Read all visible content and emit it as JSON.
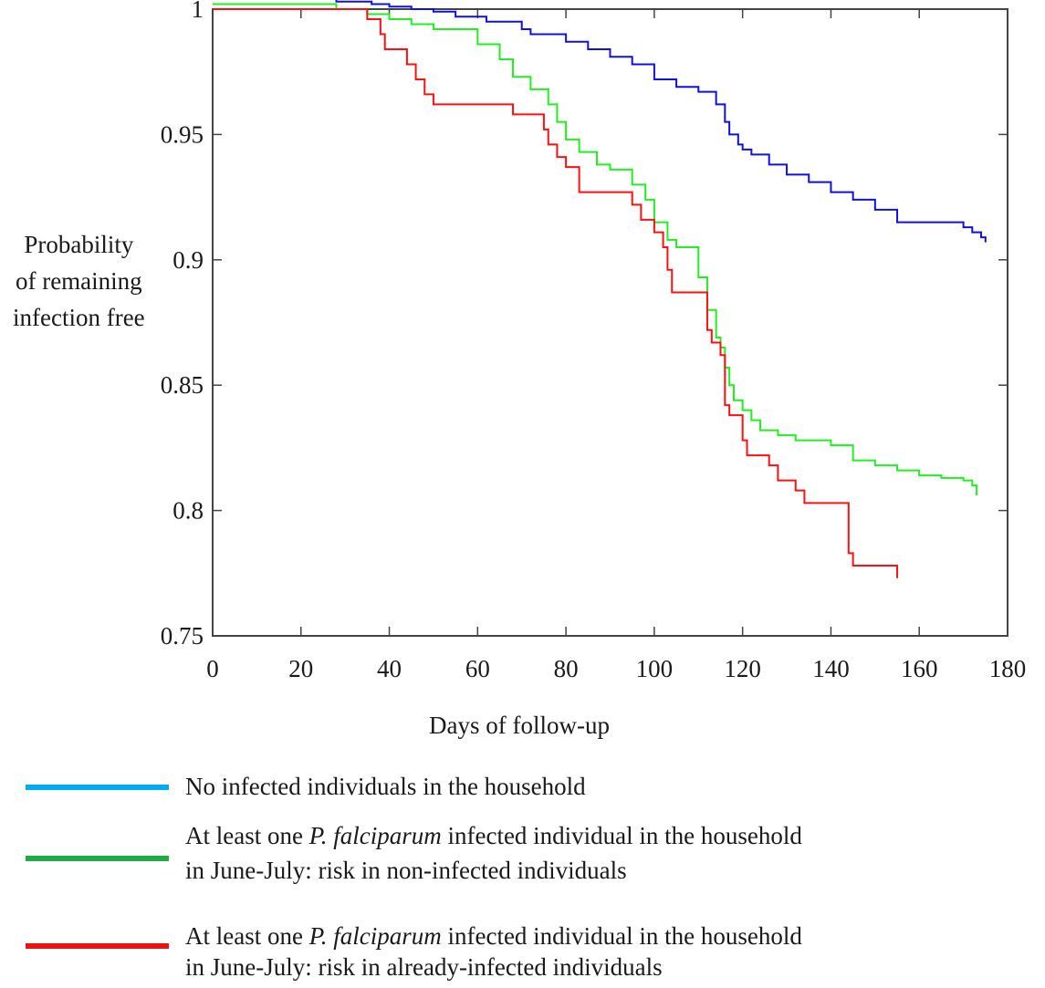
{
  "chart_data": {
    "type": "line",
    "title": "",
    "ylabel_lines": [
      "Probability",
      "of remaining",
      "infection free"
    ],
    "xlabel": "Days of follow-up",
    "xlim": [
      0,
      180
    ],
    "ylim": [
      0.75,
      1.0
    ],
    "xticks": [
      0,
      20,
      40,
      60,
      80,
      100,
      120,
      140,
      160,
      180
    ],
    "yticks": [
      0.75,
      0.8,
      0.85,
      0.9,
      0.95,
      1
    ],
    "ytick_labels": [
      "0.75",
      "0.8",
      "0.85",
      "0.9",
      "0.95",
      "1"
    ],
    "grid": false,
    "step": true,
    "series": [
      {
        "color": "#1010e0",
        "x": [
          0,
          22,
          28,
          36,
          40,
          45,
          50,
          55,
          62,
          70,
          72,
          80,
          85,
          90,
          95,
          100,
          105,
          110,
          114,
          116,
          117,
          119,
          120,
          122,
          126,
          130,
          135,
          140,
          145,
          150,
          155,
          160,
          165,
          170,
          172,
          174,
          175
        ],
        "y": [
          1.004,
          1.004,
          1.003,
          1.002,
          1.001,
          1.0,
          0.999,
          0.997,
          0.995,
          0.992,
          0.99,
          0.987,
          0.984,
          0.981,
          0.978,
          0.972,
          0.969,
          0.967,
          0.962,
          0.955,
          0.95,
          0.946,
          0.944,
          0.942,
          0.938,
          0.934,
          0.931,
          0.927,
          0.924,
          0.92,
          0.915,
          0.915,
          0.915,
          0.913,
          0.911,
          0.909,
          0.907
        ]
      },
      {
        "color": "#22ee22",
        "x": [
          0,
          20,
          28,
          35,
          40,
          45,
          50,
          60,
          65,
          68,
          72,
          76,
          78,
          80,
          83,
          87,
          90,
          95,
          98,
          100,
          103,
          105,
          108,
          110,
          112,
          114,
          115,
          116,
          117,
          118,
          120,
          122,
          124,
          128,
          130,
          132,
          140,
          145,
          150,
          155,
          160,
          165,
          170,
          172,
          173
        ],
        "y": [
          1.002,
          1.002,
          1.0,
          0.998,
          0.996,
          0.994,
          0.992,
          0.986,
          0.98,
          0.973,
          0.968,
          0.962,
          0.955,
          0.948,
          0.943,
          0.938,
          0.936,
          0.93,
          0.924,
          0.915,
          0.908,
          0.905,
          0.905,
          0.893,
          0.88,
          0.869,
          0.865,
          0.857,
          0.85,
          0.844,
          0.84,
          0.836,
          0.832,
          0.83,
          0.83,
          0.828,
          0.826,
          0.82,
          0.818,
          0.816,
          0.814,
          0.813,
          0.812,
          0.81,
          0.806
        ]
      },
      {
        "color": "#ff1010",
        "x": [
          0,
          35,
          38,
          39,
          44,
          46,
          48,
          50,
          57,
          68,
          75,
          76,
          78,
          80,
          83,
          95,
          97,
          100,
          102,
          103,
          104,
          112,
          113,
          115,
          116,
          117,
          120,
          121,
          126,
          128,
          132,
          134,
          144,
          145,
          154,
          155
        ],
        "y": [
          1.0,
          0.996,
          0.99,
          0.984,
          0.978,
          0.972,
          0.966,
          0.962,
          0.962,
          0.958,
          0.952,
          0.946,
          0.941,
          0.937,
          0.927,
          0.922,
          0.916,
          0.911,
          0.905,
          0.896,
          0.887,
          0.872,
          0.867,
          0.862,
          0.842,
          0.838,
          0.828,
          0.822,
          0.818,
          0.812,
          0.808,
          0.803,
          0.783,
          0.778,
          0.778,
          0.773
        ]
      }
    ]
  },
  "legend": [
    {
      "color": "#00aaee",
      "line1": "No infected individuals in the household",
      "line2": ""
    },
    {
      "color": "#22aa44",
      "line1_pre": "At least one ",
      "line1_em": "P. falciparum",
      "line1_post": " infected individual in the household",
      "line2": "in June-July: risk in non-infected individuals"
    },
    {
      "color": "#ee1111",
      "line1_pre": "At least one ",
      "line1_em": "P. falciparum",
      "line1_post": " infected individual in the household",
      "line2": "in June-July: risk in already-infected individuals"
    }
  ]
}
